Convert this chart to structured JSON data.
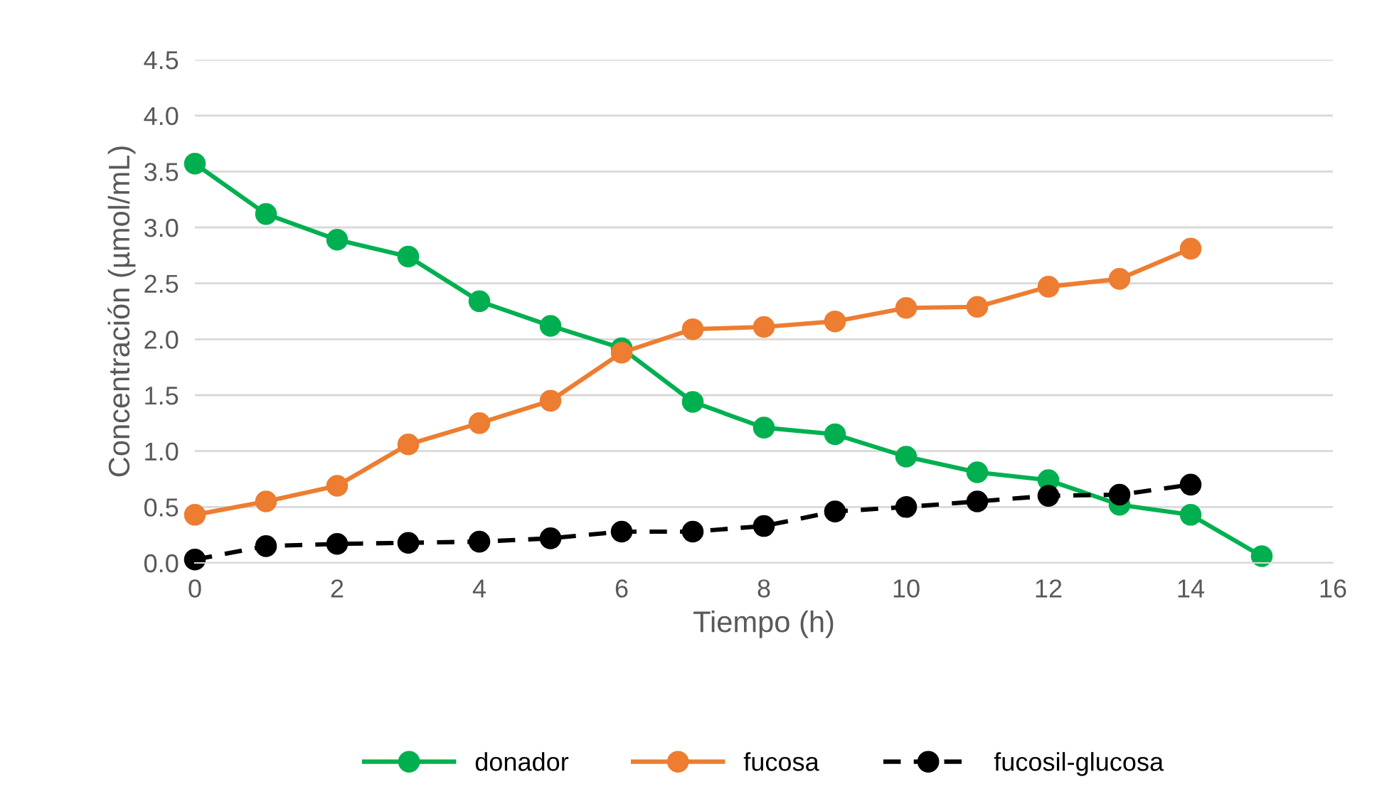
{
  "chart_data": {
    "type": "line",
    "xlabel": "Tiempo (h)",
    "ylabel": "Concentración (µmol/mL)",
    "xlim": [
      0,
      16
    ],
    "xticks": [
      0,
      2,
      4,
      6,
      8,
      10,
      12,
      14,
      16
    ],
    "ylim": [
      0,
      4.5
    ],
    "yticks": [
      {
        "value": 0,
        "label": "0.0"
      },
      0.5,
      {
        "value": 1,
        "label": "1.0"
      },
      1.5,
      {
        "value": 2,
        "label": "2.0"
      },
      2.5,
      {
        "value": 3,
        "label": "3.0"
      },
      3.5,
      {
        "value": 4,
        "label": "4.0"
      },
      4.5
    ],
    "grid": "y",
    "legend": "bottom",
    "marker": "circle",
    "series": [
      {
        "name": "donador",
        "color": "#00b050",
        "line_style": "solid",
        "x": [
          0,
          1,
          2,
          3,
          4,
          5,
          6,
          7,
          8,
          9,
          10,
          11,
          12,
          13,
          14,
          15
        ],
        "values": [
          3.57,
          3.12,
          2.89,
          2.74,
          2.34,
          2.12,
          1.92,
          1.44,
          1.21,
          1.15,
          0.95,
          0.81,
          0.74,
          0.52,
          0.43,
          0.06
        ]
      },
      {
        "name": "fucosa",
        "color": "#ed7d31",
        "line_style": "solid",
        "x": [
          0,
          1,
          2,
          3,
          4,
          5,
          6,
          7,
          8,
          9,
          10,
          11,
          12,
          13,
          14
        ],
        "values": [
          0.43,
          0.55,
          0.69,
          1.06,
          1.25,
          1.45,
          1.88,
          2.09,
          2.11,
          2.16,
          2.28,
          2.29,
          2.47,
          2.54,
          2.81
        ]
      },
      {
        "name": "fucosil-glucosa",
        "color": "#000000",
        "line_style": "dashed",
        "x": [
          0,
          1,
          2,
          3,
          4,
          5,
          6,
          7,
          8,
          9,
          10,
          11,
          12,
          13,
          14
        ],
        "values": [
          0.03,
          0.15,
          0.17,
          0.18,
          0.19,
          0.22,
          0.28,
          0.28,
          0.33,
          0.46,
          0.5,
          0.55,
          0.6,
          0.61,
          0.7
        ]
      }
    ]
  }
}
